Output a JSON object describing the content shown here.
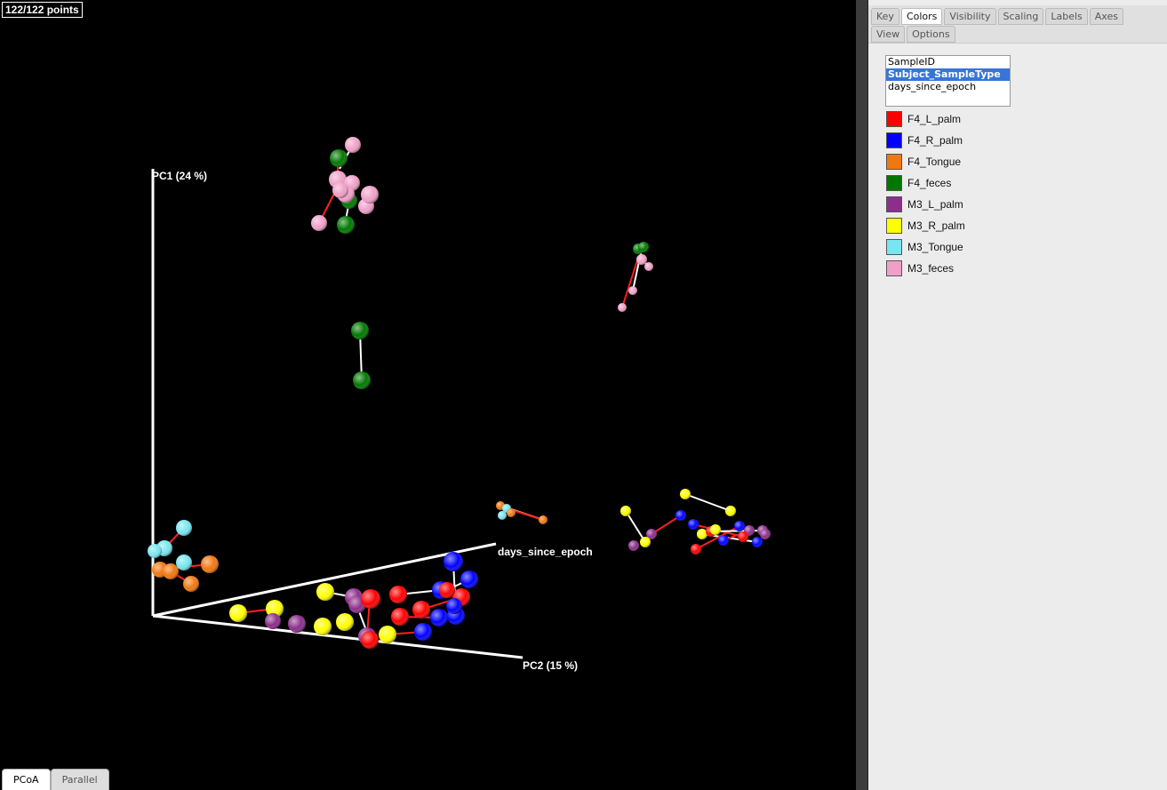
{
  "plot": {
    "points_counter": "122/122 points",
    "axis_labels": {
      "pc1": "PC1 (24 %)",
      "pc2": "PC2 (15 %)",
      "days": "days_since_epoch"
    },
    "bottom_tabs": [
      "PCoA",
      "Parallel"
    ],
    "active_bottom_tab": "PCoA"
  },
  "side_panel": {
    "tabs_row1": [
      "Key",
      "Colors",
      "Visibility",
      "Scaling",
      "Labels",
      "Axes"
    ],
    "tabs_row2": [
      "View",
      "Options"
    ],
    "active_tab": "Colors",
    "category_options": [
      "SampleID",
      "Subject_SampleType",
      "days_since_epoch"
    ],
    "selected_category": "Subject_SampleType",
    "legend": [
      {
        "label": "F4_L_palm",
        "color": "#ff0000"
      },
      {
        "label": "F4_R_palm",
        "color": "#0000ff"
      },
      {
        "label": "F4_Tongue",
        "color": "#f07810"
      },
      {
        "label": "F4_feces",
        "color": "#007800"
      },
      {
        "label": "M3_L_palm",
        "color": "#8c2e8c"
      },
      {
        "label": "M3_R_palm",
        "color": "#ffff00"
      },
      {
        "label": "M3_Tongue",
        "color": "#78e6f0"
      },
      {
        "label": "M3_feces",
        "color": "#f0a0c8"
      }
    ]
  }
}
